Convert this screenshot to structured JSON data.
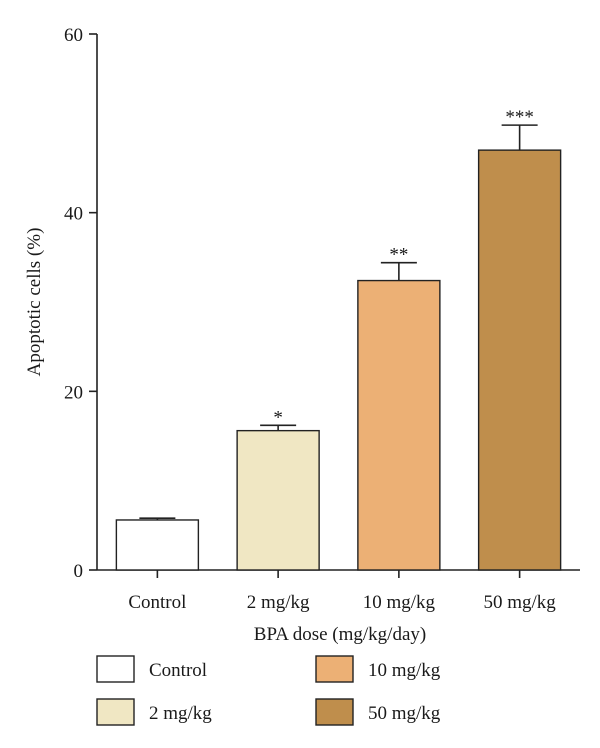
{
  "chart_data": {
    "type": "bar",
    "title": "",
    "xlabel": "BPA dose (mg/kg/day)",
    "ylabel": "Apoptotic cells (%)",
    "ylim": [
      0,
      60
    ],
    "yticks": [
      0,
      20,
      40,
      60
    ],
    "grid": false,
    "legend_position": "bottom",
    "categories": [
      "Control",
      "2 mg/kg",
      "10 mg/kg",
      "50 mg/kg"
    ],
    "values": [
      5.6,
      15.6,
      32.4,
      47.0
    ],
    "errors": [
      0.2,
      0.6,
      2.0,
      2.8
    ],
    "significance": [
      "",
      "*",
      "**",
      "***"
    ],
    "colors": [
      "#ffffff",
      "#f0e7c3",
      "#ecb075",
      "#bf8e4c"
    ],
    "legend": [
      {
        "label": "Control",
        "color": "#ffffff"
      },
      {
        "label": "10 mg/kg",
        "color": "#ecb075"
      },
      {
        "label": "2 mg/kg",
        "color": "#f0e7c3"
      },
      {
        "label": "50 mg/kg",
        "color": "#bf8e4c"
      }
    ]
  }
}
